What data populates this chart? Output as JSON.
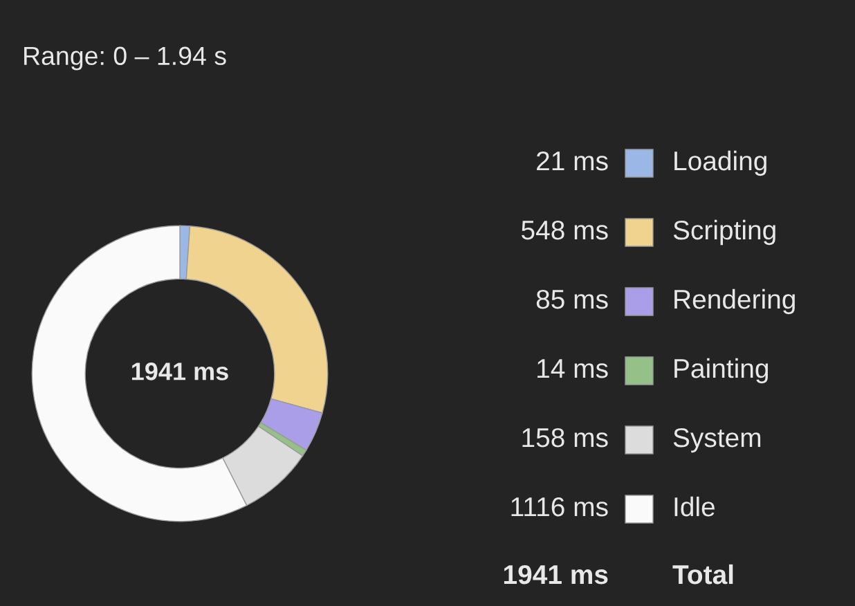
{
  "chart_data": {
    "type": "donut",
    "title": "Range: 0 – 1.94 s",
    "categories": [
      "Loading",
      "Scripting",
      "Rendering",
      "Painting",
      "System",
      "Idle"
    ],
    "values": [
      21,
      548,
      85,
      14,
      158,
      1116
    ],
    "colors": [
      "#9ab7e6",
      "#f0d38e",
      "#ab9ee8",
      "#95c088",
      "#dcdcdc",
      "#fafafa"
    ],
    "value_labels": [
      "21 ms",
      "548 ms",
      "85 ms",
      "14 ms",
      "158 ms",
      "1116 ms"
    ],
    "annotations": [
      "1941 ms",
      "1941 ms",
      "Total"
    ],
    "legend": "right"
  }
}
